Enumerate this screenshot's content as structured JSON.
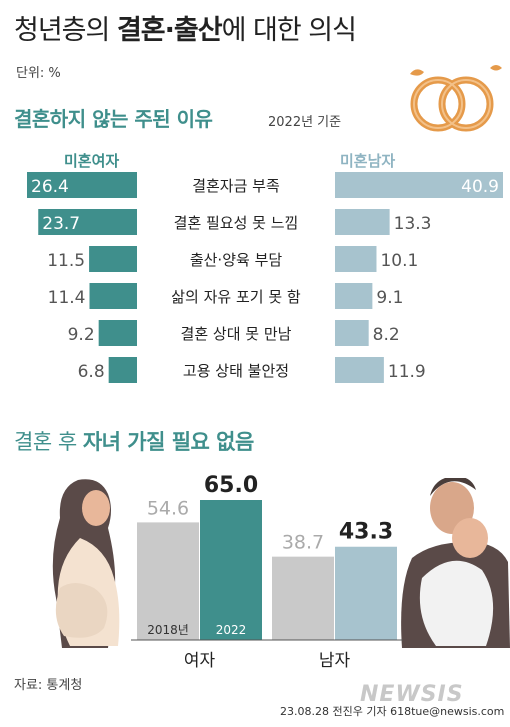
{
  "header": {
    "title_part1": "청년층의 ",
    "title_bold": "결혼·출산",
    "title_part2": "에 대한 의식",
    "unit": "단위: %"
  },
  "section1": {
    "title": "결혼하지 않는 주된 이유",
    "note": "2022년 기준"
  },
  "section2": {
    "title_part1": "결혼 후 ",
    "title_bold": "자녀 가질 필요 없음"
  },
  "footer": {
    "source": "자료: 통계청",
    "credit": "23.08.28 전진우 기자  618tue@newsis.com",
    "watermark": "NEWSIS"
  },
  "chart_data": [
    {
      "type": "bar",
      "categories": [
        "결혼자금 부족",
        "결혼 필요성 못 느낌",
        "출산·양육 부담",
        "삶의 자유 포기 못 함",
        "결혼 상대 못 만남",
        "고용 상태 불안정"
      ],
      "series": [
        {
          "name": "미혼여자",
          "values": [
            26.4,
            23.7,
            11.5,
            11.4,
            9.2,
            6.8
          ]
        },
        {
          "name": "미혼남자",
          "values": [
            40.9,
            13.3,
            10.1,
            9.1,
            8.2,
            11.9
          ]
        }
      ],
      "colors": {
        "female": "#3f8f8c",
        "male": "#a7c3ce"
      }
    },
    {
      "type": "bar",
      "categories": [
        "여자",
        "남자"
      ],
      "series": [
        {
          "name": "2018년",
          "values": [
            54.6,
            38.7
          ]
        },
        {
          "name": "2022",
          "values": [
            65.0,
            43.3
          ]
        }
      ],
      "colors": {
        "y2018": "#c9c9c9",
        "y2022_female": "#3f8f8c",
        "y2022_male": "#a7c3ce"
      }
    }
  ]
}
